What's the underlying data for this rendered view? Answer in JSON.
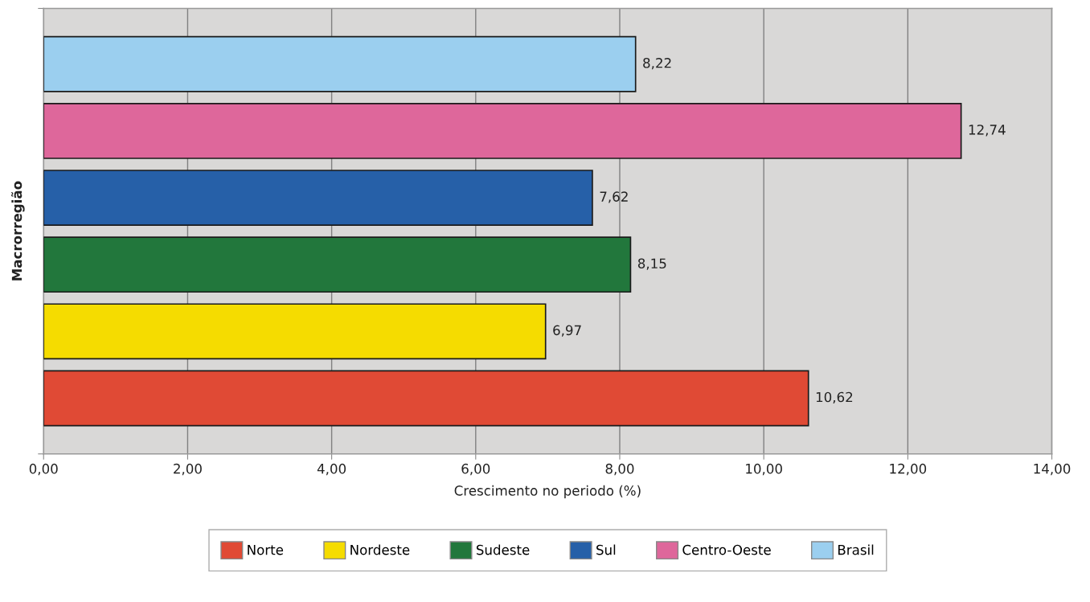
{
  "chart_data": {
    "type": "bar",
    "orientation": "horizontal",
    "xlabel": "Crescimento no periodo (%)",
    "ylabel": "Macrorregião",
    "categories": [
      null
    ],
    "series": [
      {
        "name": "Norte",
        "color": "#e04a35",
        "values": [
          10.62
        ],
        "value_labels": [
          "10,62"
        ]
      },
      {
        "name": "Nordeste",
        "color": "#f5dc00",
        "values": [
          6.97
        ],
        "value_labels": [
          "6,97"
        ]
      },
      {
        "name": "Sudeste",
        "color": "#22773c",
        "values": [
          8.15
        ],
        "value_labels": [
          "8,15"
        ]
      },
      {
        "name": "Sul",
        "color": "#2660a8",
        "values": [
          7.62
        ],
        "value_labels": [
          "7,62"
        ]
      },
      {
        "name": "Centro-Oeste",
        "color": "#de679b",
        "values": [
          12.74
        ],
        "value_labels": [
          "12,74"
        ]
      },
      {
        "name": "Brasil",
        "color": "#9bcfef",
        "values": [
          8.22
        ],
        "value_labels": [
          "8,22"
        ]
      }
    ],
    "xlim": [
      0,
      14
    ],
    "xticks": [
      {
        "value": 0,
        "label": "0,00"
      },
      {
        "value": 2,
        "label": "2,00"
      },
      {
        "value": 4,
        "label": "4,00"
      },
      {
        "value": 6,
        "label": "6,00"
      },
      {
        "value": 8,
        "label": "8,00"
      },
      {
        "value": 10,
        "label": "10,00"
      },
      {
        "value": 12,
        "label": "12,00"
      },
      {
        "value": 14,
        "label": "14,00"
      }
    ],
    "grid": "x",
    "legend": "bottom",
    "tick_labels": "x"
  }
}
